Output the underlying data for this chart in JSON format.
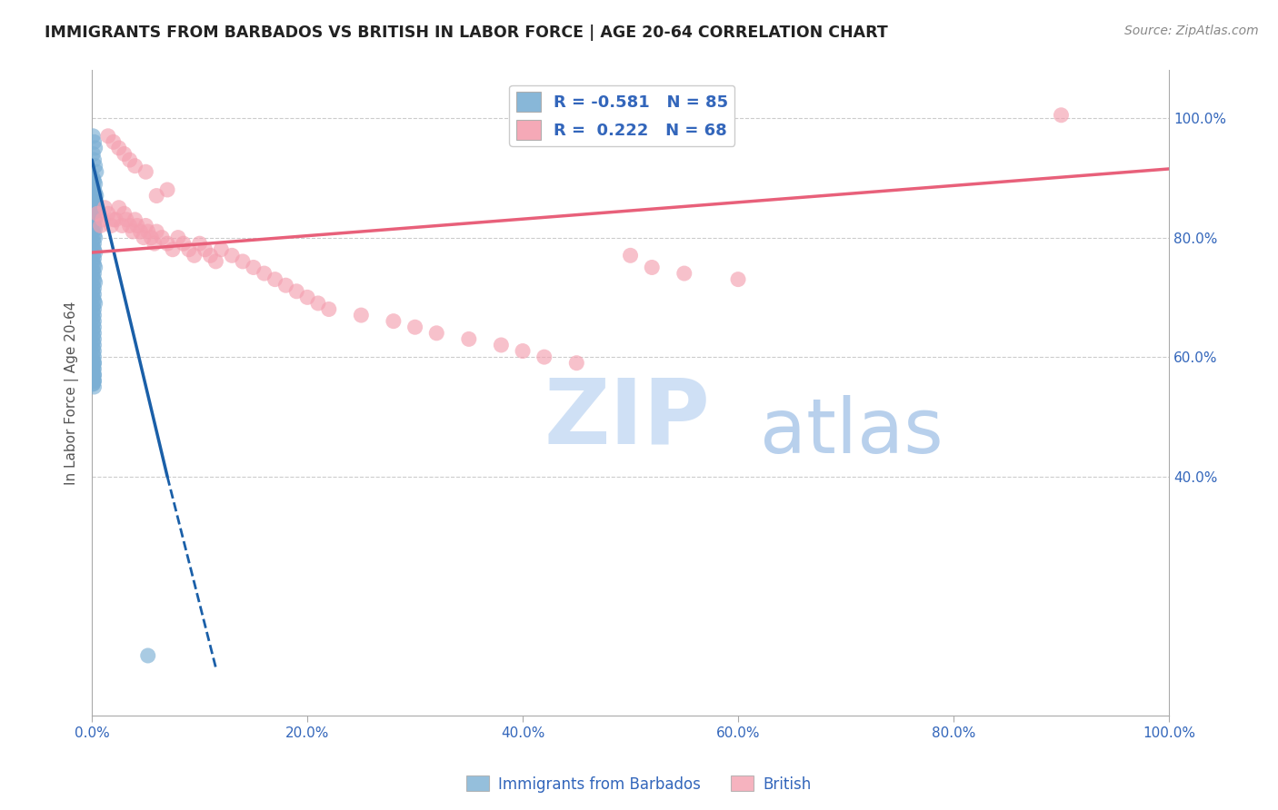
{
  "title": "IMMIGRANTS FROM BARBADOS VS BRITISH IN LABOR FORCE | AGE 20-64 CORRELATION CHART",
  "source": "Source: ZipAtlas.com",
  "ylabel": "In Labor Force | Age 20-64",
  "xlim": [
    0.0,
    1.0
  ],
  "ylim": [
    0.0,
    1.08
  ],
  "x_ticks": [
    0.0,
    0.2,
    0.4,
    0.6,
    0.8,
    1.0
  ],
  "x_tick_labels": [
    "0.0%",
    "20.0%",
    "40.0%",
    "60.0%",
    "80.0%",
    "100.0%"
  ],
  "y_ticks_right": [
    0.4,
    0.6,
    0.8,
    1.0
  ],
  "y_tick_labels_right": [
    "40.0%",
    "60.0%",
    "80.0%",
    "100.0%"
  ],
  "legend_blue_r": "R = -0.581",
  "legend_blue_n": "N = 85",
  "legend_pink_r": "R =  0.222",
  "legend_pink_n": "N = 68",
  "legend_label_blue": "Immigrants from Barbados",
  "legend_label_pink": "British",
  "blue_color": "#7bafd4",
  "pink_color": "#f4a0b0",
  "blue_line_color": "#1a5fa8",
  "pink_line_color": "#e8607a",
  "watermark_zip": "ZIP",
  "watermark_atlas": "atlas",
  "watermark_color_zip": "#cfe0f5",
  "watermark_color_atlas": "#b8d0ec",
  "blue_scatter_x": [
    0.001,
    0.002,
    0.003,
    0.001,
    0.002,
    0.003,
    0.004,
    0.001,
    0.002,
    0.003,
    0.001,
    0.002,
    0.003,
    0.004,
    0.001,
    0.002,
    0.001,
    0.002,
    0.003,
    0.001,
    0.002,
    0.003,
    0.001,
    0.002,
    0.003,
    0.001,
    0.002,
    0.003,
    0.001,
    0.002,
    0.001,
    0.002,
    0.003,
    0.001,
    0.002,
    0.001,
    0.002,
    0.003,
    0.001,
    0.002,
    0.001,
    0.002,
    0.003,
    0.001,
    0.002,
    0.001,
    0.002,
    0.001,
    0.002,
    0.003,
    0.001,
    0.002,
    0.001,
    0.002,
    0.001,
    0.002,
    0.001,
    0.002,
    0.001,
    0.002,
    0.001,
    0.002,
    0.001,
    0.002,
    0.001,
    0.002,
    0.001,
    0.002,
    0.001,
    0.002,
    0.001,
    0.002,
    0.001,
    0.002,
    0.001,
    0.002,
    0.001,
    0.002,
    0.001,
    0.002,
    0.001,
    0.002,
    0.001,
    0.002,
    0.052
  ],
  "blue_scatter_y": [
    0.97,
    0.96,
    0.95,
    0.94,
    0.93,
    0.92,
    0.91,
    0.9,
    0.895,
    0.89,
    0.885,
    0.88,
    0.875,
    0.87,
    0.865,
    0.86,
    0.855,
    0.85,
    0.845,
    0.84,
    0.835,
    0.83,
    0.825,
    0.82,
    0.815,
    0.81,
    0.805,
    0.8,
    0.795,
    0.79,
    0.785,
    0.78,
    0.775,
    0.77,
    0.765,
    0.76,
    0.755,
    0.75,
    0.745,
    0.74,
    0.735,
    0.73,
    0.725,
    0.72,
    0.715,
    0.71,
    0.705,
    0.7,
    0.695,
    0.69,
    0.685,
    0.68,
    0.675,
    0.67,
    0.665,
    0.66,
    0.655,
    0.65,
    0.645,
    0.64,
    0.635,
    0.63,
    0.625,
    0.62,
    0.615,
    0.61,
    0.605,
    0.6,
    0.595,
    0.59,
    0.585,
    0.58,
    0.575,
    0.57,
    0.565,
    0.56,
    0.555,
    0.55,
    0.58,
    0.57,
    0.565,
    0.56,
    0.555,
    0.59,
    0.1
  ],
  "pink_scatter_x": [
    0.005,
    0.01,
    0.008,
    0.012,
    0.015,
    0.02,
    0.018,
    0.025,
    0.022,
    0.028,
    0.03,
    0.032,
    0.035,
    0.038,
    0.04,
    0.042,
    0.045,
    0.048,
    0.05,
    0.052,
    0.055,
    0.058,
    0.06,
    0.065,
    0.07,
    0.075,
    0.08,
    0.085,
    0.09,
    0.095,
    0.1,
    0.105,
    0.11,
    0.115,
    0.12,
    0.13,
    0.14,
    0.15,
    0.16,
    0.17,
    0.18,
    0.19,
    0.2,
    0.21,
    0.22,
    0.25,
    0.28,
    0.3,
    0.32,
    0.35,
    0.38,
    0.4,
    0.42,
    0.45,
    0.5,
    0.52,
    0.55,
    0.6,
    0.9,
    0.015,
    0.02,
    0.025,
    0.03,
    0.035,
    0.04,
    0.05,
    0.06,
    0.07
  ],
  "pink_scatter_y": [
    0.84,
    0.83,
    0.82,
    0.85,
    0.84,
    0.83,
    0.82,
    0.85,
    0.83,
    0.82,
    0.84,
    0.83,
    0.82,
    0.81,
    0.83,
    0.82,
    0.81,
    0.8,
    0.82,
    0.81,
    0.8,
    0.79,
    0.81,
    0.8,
    0.79,
    0.78,
    0.8,
    0.79,
    0.78,
    0.77,
    0.79,
    0.78,
    0.77,
    0.76,
    0.78,
    0.77,
    0.76,
    0.75,
    0.74,
    0.73,
    0.72,
    0.71,
    0.7,
    0.69,
    0.68,
    0.67,
    0.66,
    0.65,
    0.64,
    0.63,
    0.62,
    0.61,
    0.6,
    0.59,
    0.77,
    0.75,
    0.74,
    0.73,
    1.005,
    0.97,
    0.96,
    0.95,
    0.94,
    0.93,
    0.92,
    0.91,
    0.87,
    0.88
  ],
  "blue_trend_x0": 0.0,
  "blue_trend_y0": 0.93,
  "blue_trend_x1": 0.07,
  "blue_trend_y1": 0.4,
  "blue_trend_xdash0": 0.07,
  "blue_trend_ydash0": 0.4,
  "blue_trend_xdash1": 0.115,
  "blue_trend_ydash1": 0.08,
  "pink_trend_x0": 0.0,
  "pink_trend_y0": 0.775,
  "pink_trend_x1": 1.0,
  "pink_trend_y1": 0.915
}
